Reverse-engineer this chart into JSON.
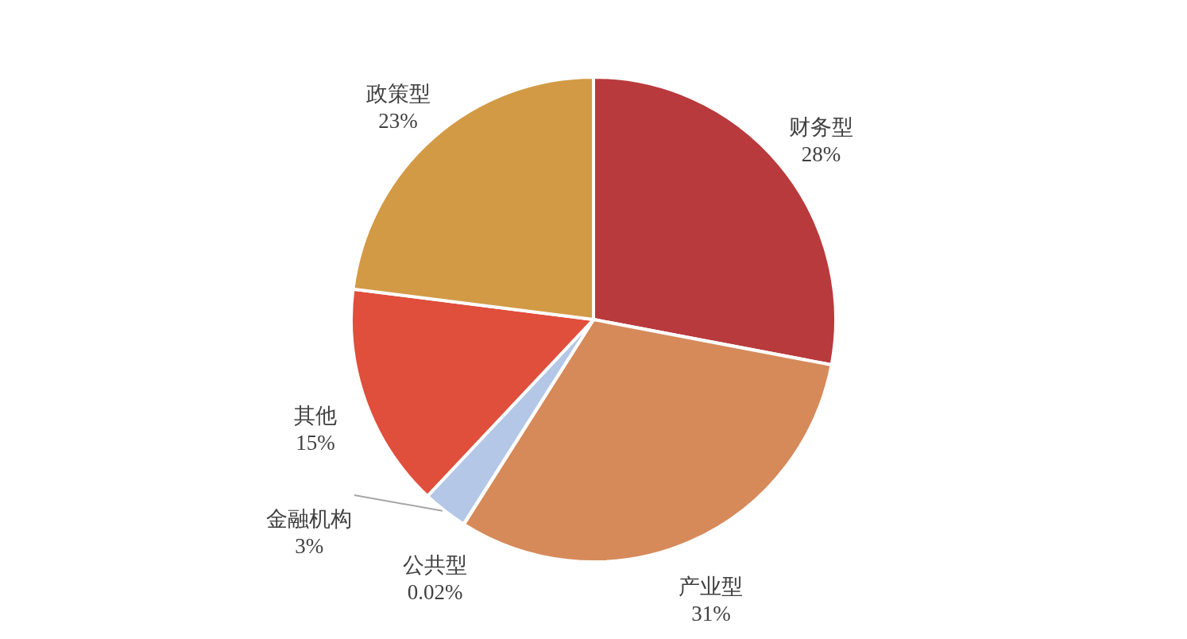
{
  "chart_data": {
    "type": "pie",
    "categories": [
      "财务型",
      "产业型",
      "公共型",
      "金融机构",
      "其他",
      "政策型"
    ],
    "values": [
      28,
      31,
      0.02,
      3,
      15,
      23
    ],
    "value_labels": [
      "28%",
      "31%",
      "0.02%",
      "3%",
      "15%",
      "23%"
    ],
    "colors": [
      "#b93a3c",
      "#d68a5a",
      "#c9c9c9",
      "#b4c7e7",
      "#e04e3c",
      "#d39a45"
    ]
  }
}
